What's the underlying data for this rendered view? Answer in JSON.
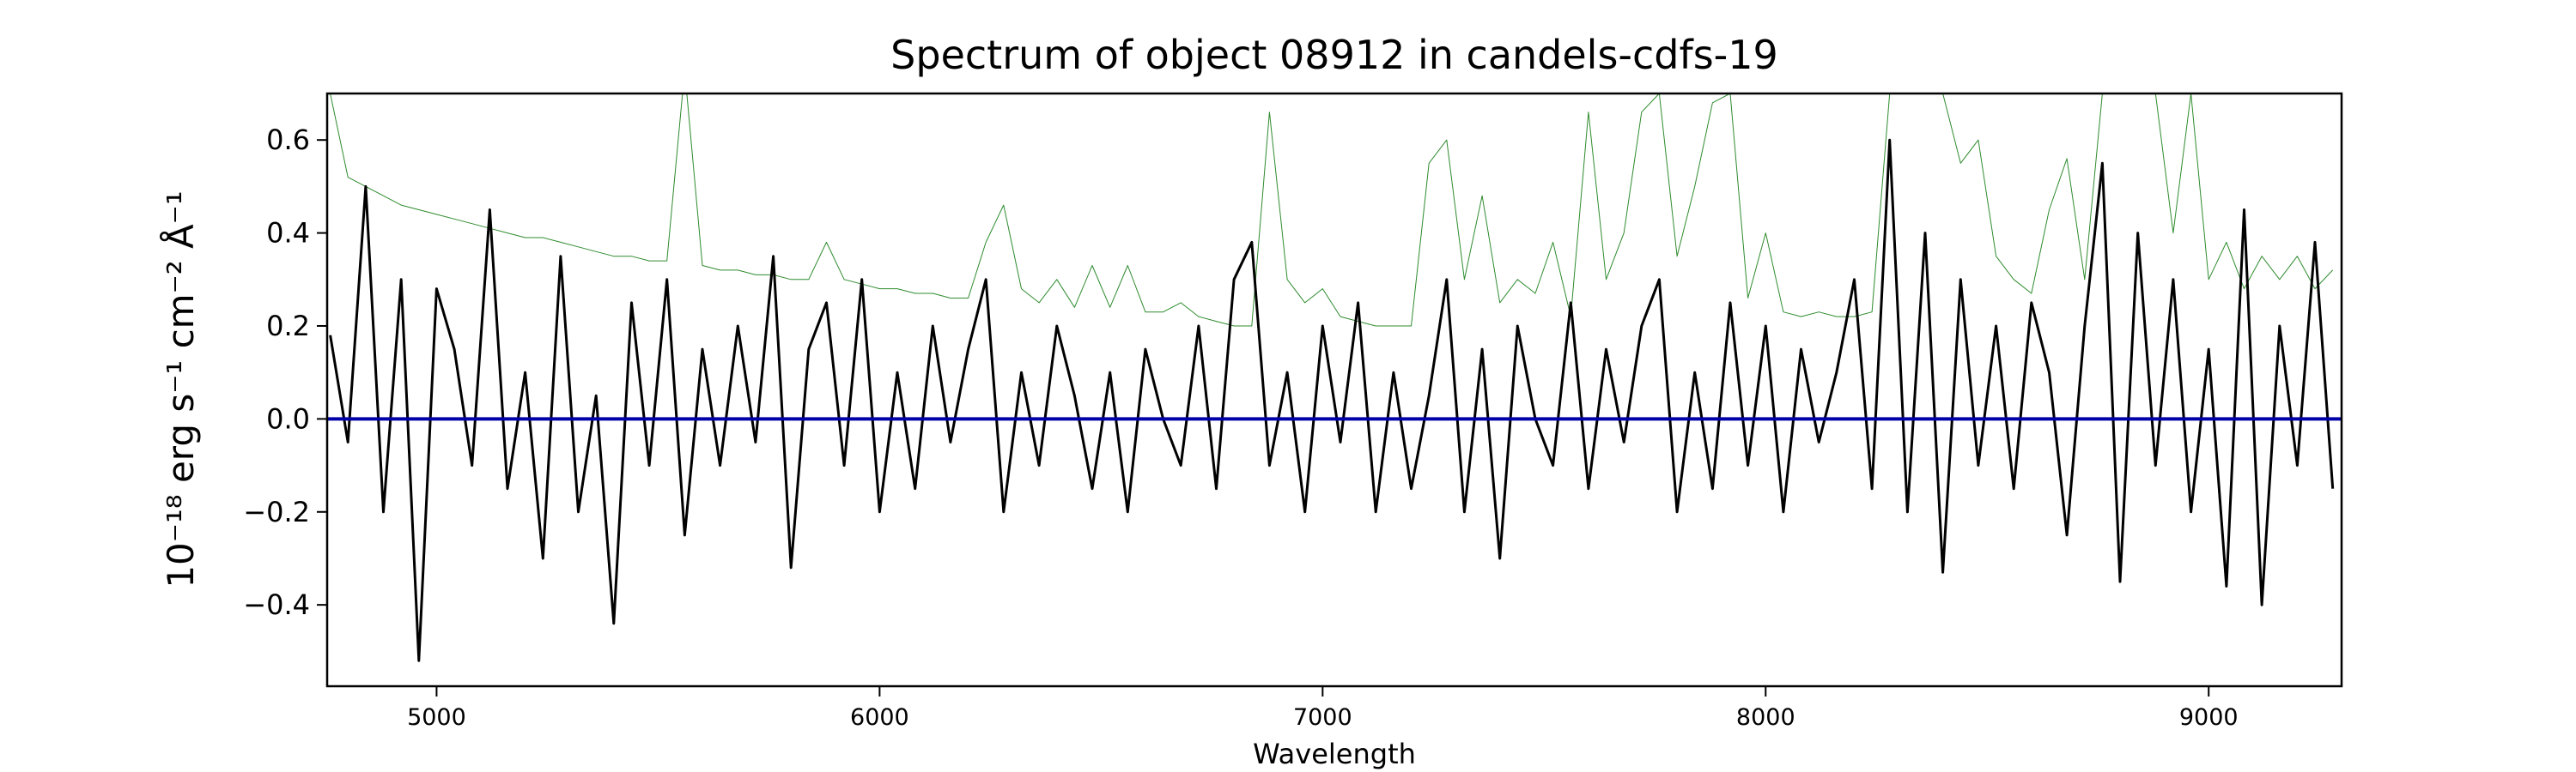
{
  "chart_data": {
    "type": "line",
    "title": "Spectrum of object 08912 in candels-cdfs-19",
    "x_label": "Wavelength",
    "y_label": "10⁻¹⁸ erg s⁻¹ cm⁻² Å⁻¹",
    "x": [
      4760,
      4800,
      4840,
      4880,
      4920,
      4960,
      5000,
      5040,
      5080,
      5120,
      5160,
      5200,
      5240,
      5280,
      5320,
      5360,
      5400,
      5440,
      5480,
      5520,
      5560,
      5600,
      5640,
      5680,
      5720,
      5760,
      5800,
      5840,
      5880,
      5920,
      5960,
      6000,
      6040,
      6080,
      6120,
      6160,
      6200,
      6240,
      6280,
      6320,
      6360,
      6400,
      6440,
      6480,
      6520,
      6560,
      6600,
      6640,
      6680,
      6720,
      6760,
      6800,
      6840,
      6880,
      6920,
      6960,
      7000,
      7040,
      7080,
      7120,
      7160,
      7200,
      7240,
      7280,
      7320,
      7360,
      7400,
      7440,
      7480,
      7520,
      7560,
      7600,
      7640,
      7680,
      7720,
      7760,
      7800,
      7840,
      7880,
      7920,
      7960,
      8000,
      8040,
      8080,
      8120,
      8160,
      8200,
      8240,
      8280,
      8320,
      8360,
      8400,
      8440,
      8480,
      8520,
      8560,
      8600,
      8640,
      8680,
      8720,
      8760,
      8800,
      8840,
      8880,
      8920,
      8960,
      9000,
      9040,
      9080,
      9120,
      9160,
      9200,
      9240,
      9280
    ],
    "series": [
      {
        "color": "#2e8b2e",
        "values": [
          0.7,
          0.52,
          0.5,
          0.48,
          0.46,
          0.45,
          0.44,
          0.43,
          0.42,
          0.41,
          0.4,
          0.39,
          0.39,
          0.38,
          0.37,
          0.36,
          0.35,
          0.35,
          0.34,
          0.34,
          0.75,
          0.33,
          0.32,
          0.32,
          0.31,
          0.31,
          0.3,
          0.3,
          0.38,
          0.3,
          0.29,
          0.28,
          0.28,
          0.27,
          0.27,
          0.26,
          0.26,
          0.38,
          0.46,
          0.28,
          0.25,
          0.3,
          0.24,
          0.33,
          0.24,
          0.33,
          0.23,
          0.23,
          0.25,
          0.22,
          0.21,
          0.2,
          0.2,
          0.66,
          0.3,
          0.25,
          0.28,
          0.22,
          0.21,
          0.2,
          0.2,
          0.2,
          0.55,
          0.6,
          0.3,
          0.48,
          0.25,
          0.3,
          0.27,
          0.38,
          0.22,
          0.66,
          0.3,
          0.4,
          0.66,
          0.7,
          0.35,
          0.5,
          0.68,
          0.7,
          0.26,
          0.4,
          0.23,
          0.22,
          0.23,
          0.22,
          0.22,
          0.23,
          0.7,
          0.7,
          0.7,
          0.7,
          0.55,
          0.6,
          0.35,
          0.3,
          0.27,
          0.45,
          0.56,
          0.3,
          0.7,
          0.7,
          0.7,
          0.7,
          0.4,
          0.7,
          0.3,
          0.38,
          0.28,
          0.35,
          0.3,
          0.35,
          0.28,
          0.32
        ],
        "width": 1
      },
      {
        "color": "#000000",
        "values": [
          0.18,
          -0.05,
          0.5,
          -0.2,
          0.3,
          -0.52,
          0.28,
          0.15,
          -0.1,
          0.45,
          -0.15,
          0.1,
          -0.3,
          0.35,
          -0.2,
          0.05,
          -0.44,
          0.25,
          -0.1,
          0.3,
          -0.25,
          0.15,
          -0.1,
          0.2,
          -0.05,
          0.35,
          -0.32,
          0.15,
          0.25,
          -0.1,
          0.3,
          -0.2,
          0.1,
          -0.15,
          0.2,
          -0.05,
          0.15,
          0.3,
          -0.2,
          0.1,
          -0.1,
          0.2,
          0.05,
          -0.15,
          0.1,
          -0.2,
          0.15,
          0.0,
          -0.1,
          0.2,
          -0.15,
          0.3,
          0.38,
          -0.1,
          0.1,
          -0.2,
          0.2,
          -0.05,
          0.25,
          -0.2,
          0.1,
          -0.15,
          0.05,
          0.3,
          -0.2,
          0.15,
          -0.3,
          0.2,
          0.0,
          -0.1,
          0.25,
          -0.15,
          0.15,
          -0.05,
          0.2,
          0.3,
          -0.2,
          0.1,
          -0.15,
          0.25,
          -0.1,
          0.2,
          -0.2,
          0.15,
          -0.05,
          0.1,
          0.3,
          -0.15,
          0.6,
          -0.2,
          0.4,
          -0.33,
          0.3,
          -0.1,
          0.2,
          -0.15,
          0.25,
          0.1,
          -0.25,
          0.2,
          0.55,
          -0.35,
          0.4,
          -0.1,
          0.3,
          -0.2,
          0.15,
          -0.36,
          0.45,
          -0.4,
          0.2,
          -0.1,
          0.38,
          -0.15
        ],
        "width": 3
      },
      {
        "color": "#0000aa",
        "x": [
          4753,
          9300
        ],
        "values": [
          0,
          0
        ],
        "width": 4
      }
    ],
    "xlim": [
      4753,
      9300
    ],
    "ylim": [
      -0.575,
      0.7
    ],
    "xticks": [
      5000,
      6000,
      7000,
      8000,
      9000
    ],
    "yticks": [
      {
        "value": -0.4,
        "label": "−0.4"
      },
      {
        "value": -0.2,
        "label": "−0.2"
      },
      {
        "value": 0,
        "label": "0.0"
      },
      0.2,
      0.4,
      0.6
    ],
    "grid": false
  }
}
